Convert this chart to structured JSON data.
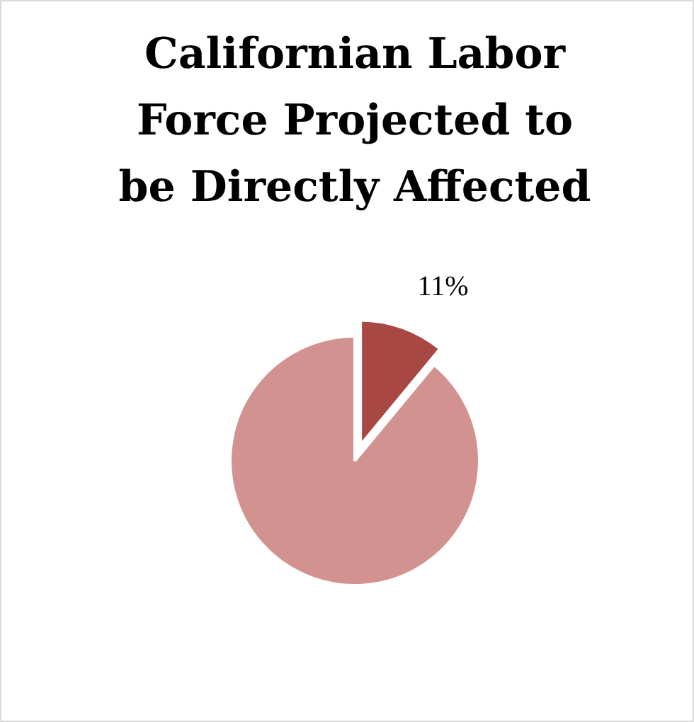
{
  "chart_data": {
    "type": "pie",
    "title": "Californian Labor Force Projected to be Directly Affected",
    "categories": [
      null,
      null
    ],
    "values": [
      11,
      89
    ],
    "colors": [
      "#a84845",
      "#d29290"
    ],
    "value_labels": [
      "11%",
      null
    ]
  }
}
